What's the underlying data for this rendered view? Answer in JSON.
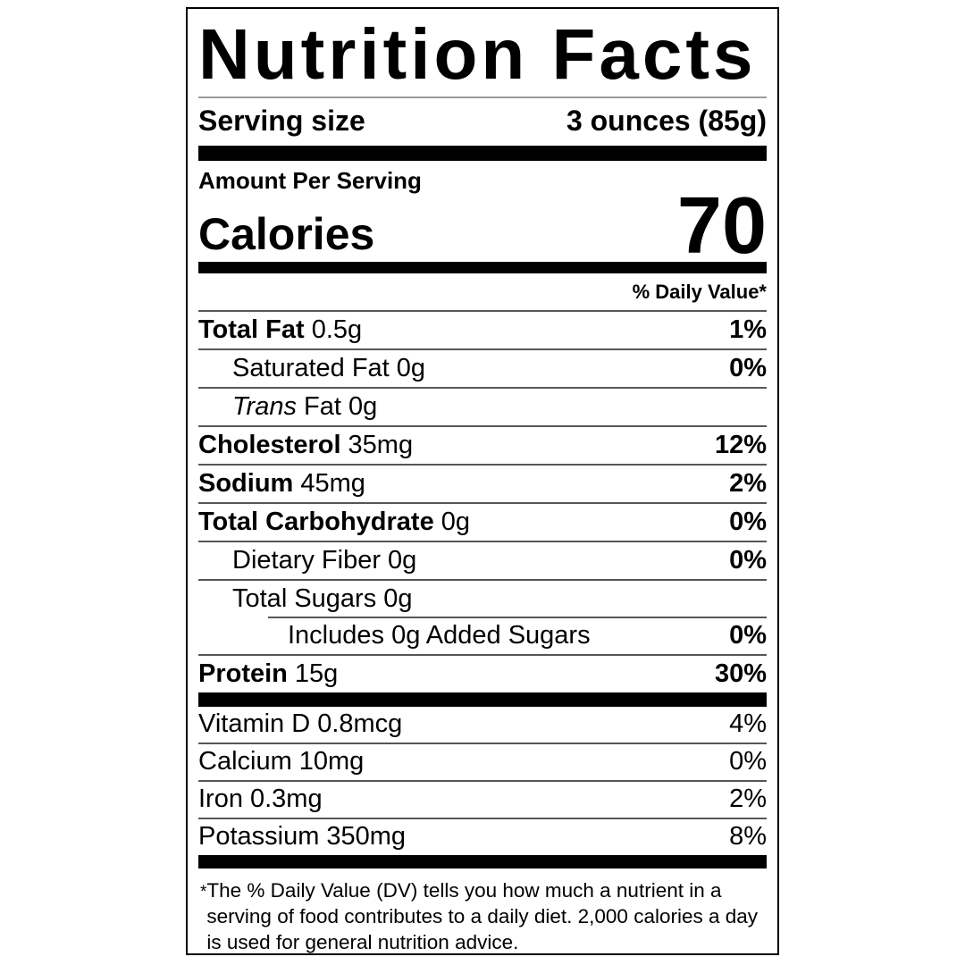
{
  "label": {
    "title": "Nutrition Facts",
    "serving": {
      "label": "Serving size",
      "value": "3 ounces (85g)"
    },
    "amount_per_serving": "Amount Per Serving",
    "calories": {
      "label": "Calories",
      "value": "70"
    },
    "daily_value_header": "% Daily Value*",
    "nutrients": [
      {
        "name": "Total Fat",
        "amount": "0.5g",
        "dv": "1%"
      },
      {
        "name": "Saturated Fat",
        "amount": "0g",
        "dv": "0%"
      },
      {
        "name": "Trans",
        "amount": "Fat 0g",
        "dv": ""
      },
      {
        "name": "Cholesterol",
        "amount": "35mg",
        "dv": "12%"
      },
      {
        "name": "Sodium",
        "amount": "45mg",
        "dv": "2%"
      },
      {
        "name": "Total Carbohydrate",
        "amount": "0g",
        "dv": "0%"
      },
      {
        "name": "Dietary Fiber",
        "amount": "0g",
        "dv": "0%"
      },
      {
        "name": "Total Sugars",
        "amount": "0g",
        "dv": ""
      },
      {
        "name": "Includes 0g Added Sugars",
        "amount": "",
        "dv": "0%"
      },
      {
        "name": "Protein",
        "amount": "15g",
        "dv": "30%"
      }
    ],
    "micronutrients": [
      {
        "name": "Vitamin D",
        "amount": "0.8mcg",
        "dv": "4%"
      },
      {
        "name": "Calcium",
        "amount": "10mg",
        "dv": "0%"
      },
      {
        "name": "Iron",
        "amount": "0.3mg",
        "dv": "2%"
      },
      {
        "name": "Potassium",
        "amount": "350mg",
        "dv": "8%"
      }
    ],
    "footnote": {
      "marker": "*",
      "text": "The % Daily Value (DV) tells you how much a nutrient in a serving of food contributes to a daily diet. 2,000 calories a day is used for general nutrition advice."
    },
    "colors": {
      "text": "#000000",
      "background": "#ffffff",
      "thick_bar": "#000000",
      "hairline": "#565656"
    }
  }
}
